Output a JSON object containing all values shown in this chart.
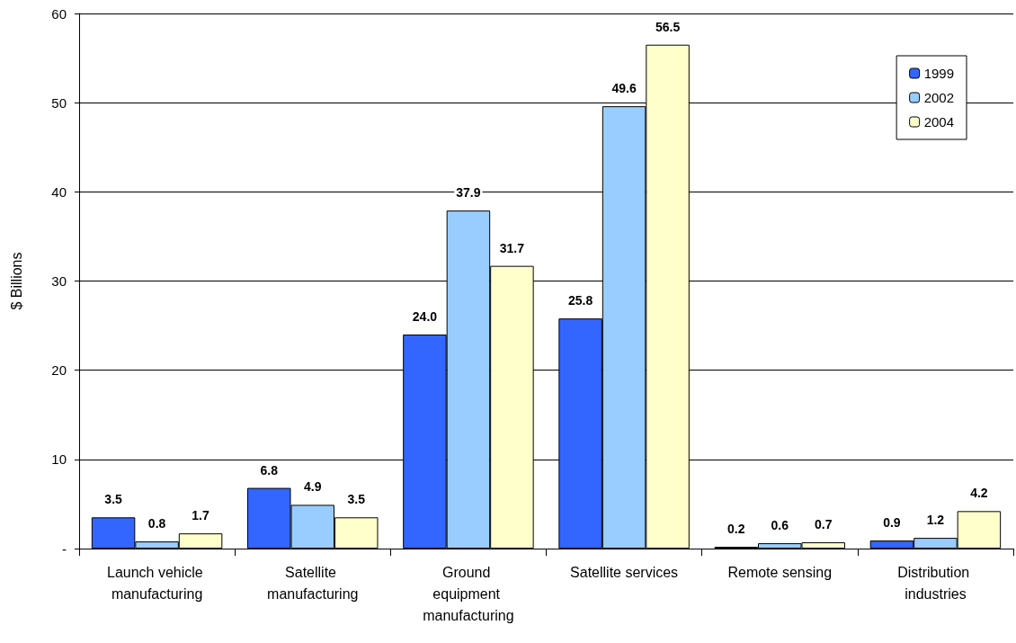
{
  "chart_data": {
    "type": "bar",
    "ylabel": "$ Billions",
    "categories": [
      "Launch vehicle manufacturing",
      "Satellite manufacturing",
      "Ground equipment manufacturing",
      "Satellite services",
      "Remote sensing",
      "Distribution industries"
    ],
    "series": [
      {
        "name": "1999",
        "color": "#3366ff",
        "values": [
          3.5,
          6.8,
          24.0,
          25.8,
          0.2,
          0.9
        ],
        "value_labels": [
          "3.5",
          "6.8",
          "24.0",
          "25.8",
          "0.2",
          "0.9"
        ]
      },
      {
        "name": "2002",
        "color": "#99ccff",
        "values": [
          0.8,
          4.9,
          37.9,
          49.6,
          0.6,
          1.2
        ],
        "value_labels": [
          "0.8",
          "4.9",
          "37.9",
          "49.6",
          "0.6",
          "1.2"
        ]
      },
      {
        "name": "2004",
        "color": "#ffffcc",
        "values": [
          1.7,
          3.5,
          31.7,
          56.5,
          0.7,
          4.2
        ],
        "value_labels": [
          "1.7",
          "3.5",
          "31.7",
          "56.5",
          "0.7",
          "4.2"
        ]
      }
    ],
    "ylim": [
      0,
      60
    ],
    "yticks": [
      {
        "value": 0,
        "label": "-"
      },
      10,
      20,
      30,
      40,
      50,
      60
    ],
    "grid": "y",
    "legend": "top right"
  }
}
